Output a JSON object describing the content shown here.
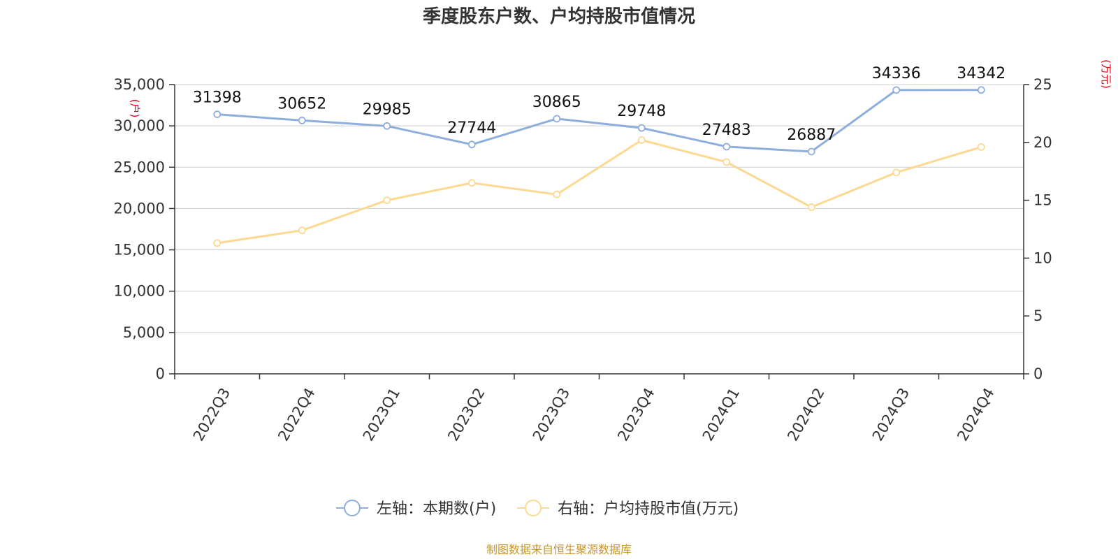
{
  "chart_data": {
    "type": "line",
    "title": "季度股东户数、户均持股市值情况",
    "categories": [
      "2022Q3",
      "2022Q4",
      "2023Q1",
      "2023Q2",
      "2023Q3",
      "2023Q4",
      "2024Q1",
      "2024Q2",
      "2024Q3",
      "2024Q4"
    ],
    "series": [
      {
        "name": "左轴：本期数(户)",
        "axis": "left",
        "color": "#8eaedb",
        "values": [
          31398,
          30652,
          29985,
          27744,
          30865,
          29748,
          27483,
          26887,
          34336,
          34342
        ],
        "labels": [
          "31398",
          "30652",
          "29985",
          "27744",
          "30865",
          "29748",
          "27483",
          "26887",
          "34336",
          "34342"
        ]
      },
      {
        "name": "右轴：户均持股市值(万元)",
        "axis": "right",
        "color": "#fcd993",
        "values": [
          11.3,
          12.4,
          15.0,
          16.5,
          15.5,
          20.2,
          18.3,
          14.4,
          17.4,
          19.6
        ]
      }
    ],
    "left_axis": {
      "unit": "(户)",
      "ylim": [
        0,
        35000
      ],
      "ticks": [
        0,
        5000,
        10000,
        15000,
        20000,
        25000,
        30000,
        35000
      ],
      "tick_labels": [
        "0",
        "5,000",
        "10,000",
        "15,000",
        "20,000",
        "25,000",
        "30,000",
        "35,000"
      ]
    },
    "right_axis": {
      "unit": "(万元)",
      "ylim": [
        0,
        25
      ],
      "ticks": [
        0,
        5,
        10,
        15,
        20,
        25
      ],
      "tick_labels": [
        "0",
        "5",
        "10",
        "15",
        "20",
        "25"
      ]
    },
    "grid": true,
    "legend_position": "bottom"
  },
  "source": "制图数据来自恒生聚源数据库"
}
